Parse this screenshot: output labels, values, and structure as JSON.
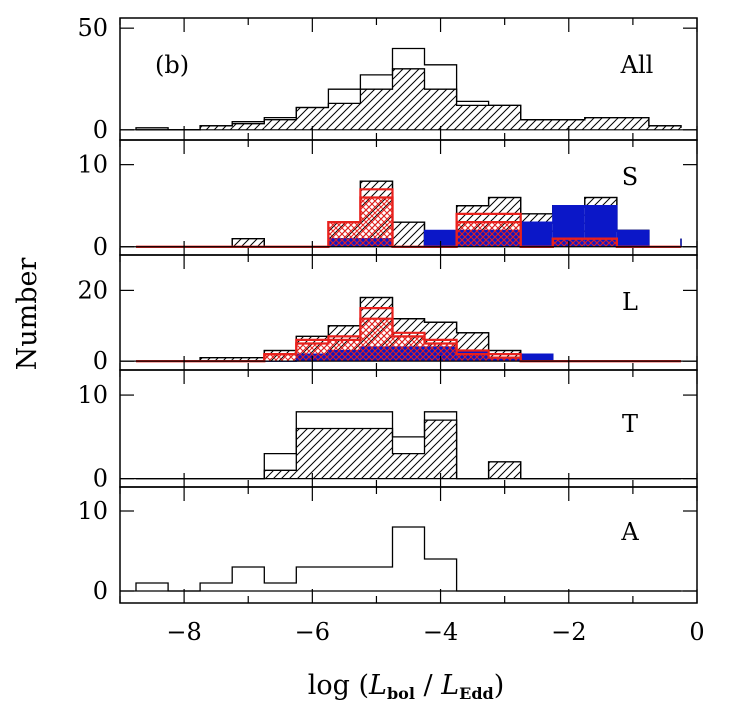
{
  "chart_data": {
    "type": "bar",
    "figure_label": "(b)",
    "xlabel_parts": {
      "prefix": "log",
      "num_main": "L",
      "num_sub": "bol",
      "slash": "/",
      "den_main": "L",
      "den_sub": "Edd"
    },
    "ylabel": "Number",
    "x_range": [
      -9,
      0
    ],
    "x_ticks": [
      -8,
      -6,
      -4,
      -2,
      0
    ],
    "bin_edges": [
      -8.75,
      -8.25,
      -7.75,
      -7.25,
      -6.75,
      -6.25,
      -5.75,
      -5.25,
      -4.75,
      -4.25,
      -3.75,
      -3.25,
      -2.75,
      -2.25,
      -1.75,
      -1.25,
      -0.75,
      -0.25
    ],
    "colors": {
      "red": "#e8201c",
      "blue": "#0b17c8",
      "hatch": "#000000"
    },
    "panels": [
      {
        "label": "All",
        "ylim": [
          -5,
          55
        ],
        "yticks": [
          0,
          50
        ],
        "series": [
          {
            "style": "hatch",
            "values": [
              0,
              0,
              2,
              3,
              5,
              11,
              13,
              20,
              30,
              20,
              12,
              12,
              5,
              5,
              6,
              6,
              2,
              1
            ]
          },
          {
            "style": "outline",
            "values": [
              1,
              0,
              2,
              4,
              6,
              11,
              20,
              27,
              40,
              32,
              14,
              12,
              5,
              5,
              6,
              6,
              2,
              1
            ]
          }
        ]
      },
      {
        "label": "S",
        "ylim": [
          -1,
          13
        ],
        "yticks": [
          0,
          10
        ],
        "series": [
          {
            "style": "hatch",
            "values": [
              0,
              0,
              0,
              1,
              0,
              0,
              3,
              8,
              3,
              0,
              5,
              6,
              4,
              5,
              6,
              2,
              0,
              1
            ]
          },
          {
            "style": "outline",
            "values": [
              0,
              0,
              0,
              1,
              0,
              0,
              3,
              8,
              3,
              0,
              5,
              6,
              4,
              5,
              6,
              2,
              0,
              1
            ]
          },
          {
            "style": "blue",
            "values": [
              0,
              0,
              0,
              0,
              0,
              0,
              1,
              1,
              0,
              2,
              2,
              2,
              3,
              5,
              5,
              2,
              0,
              1
            ]
          },
          {
            "style": "red-cross",
            "values": [
              0,
              0,
              0,
              0,
              0,
              0,
              3,
              6,
              0,
              0,
              3,
              3,
              0,
              1,
              1,
              0,
              0,
              0
            ]
          },
          {
            "style": "red-line",
            "values": [
              0,
              0,
              0,
              0,
              0,
              0,
              3,
              7,
              0,
              0,
              4,
              4,
              0,
              1,
              1,
              0,
              0,
              0
            ]
          }
        ]
      },
      {
        "label": "L",
        "ylim": [
          -2.5,
          30
        ],
        "yticks": [
          0,
          20
        ],
        "series": [
          {
            "style": "hatch",
            "values": [
              0,
              0,
              1,
              1,
              3,
              7,
              10,
              18,
              12,
              11,
              8,
              3,
              2,
              0,
              0,
              0,
              0,
              0
            ]
          },
          {
            "style": "outline",
            "values": [
              0,
              0,
              1,
              1,
              3,
              7,
              10,
              18,
              12,
              11,
              8,
              3,
              2,
              0,
              0,
              0,
              0,
              0
            ]
          },
          {
            "style": "blue",
            "values": [
              0,
              0,
              0,
              0,
              0,
              2,
              3,
              4,
              4,
              4,
              3,
              1,
              2,
              0,
              0,
              0,
              0,
              0
            ]
          },
          {
            "style": "red-cross",
            "values": [
              0,
              0,
              0,
              0,
              2,
              5,
              6,
              12,
              7,
              5,
              2,
              1,
              0,
              0,
              0,
              0,
              0,
              0
            ]
          },
          {
            "style": "red-line",
            "values": [
              0,
              0,
              0,
              0,
              2,
              6,
              7,
              15,
              8,
              6,
              3,
              2,
              0,
              0,
              0,
              0,
              0,
              0
            ]
          }
        ]
      },
      {
        "label": "T",
        "ylim": [
          -1,
          13
        ],
        "yticks": [
          0,
          10
        ],
        "series": [
          {
            "style": "hatch",
            "values": [
              0,
              0,
              0,
              0,
              1,
              6,
              6,
              6,
              3,
              7,
              0,
              2,
              0,
              0,
              0,
              0,
              0,
              0
            ]
          },
          {
            "style": "outline",
            "values": [
              0,
              0,
              0,
              0,
              3,
              8,
              8,
              8,
              5,
              8,
              0,
              2,
              0,
              0,
              0,
              0,
              0,
              0
            ]
          }
        ]
      },
      {
        "label": "A",
        "ylim": [
          -1.5,
          13
        ],
        "yticks": [
          0,
          10
        ],
        "series": [
          {
            "style": "outline",
            "values": [
              1,
              0,
              1,
              3,
              1,
              3,
              3,
              3,
              8,
              4,
              0,
              0,
              0,
              0,
              0,
              0,
              0,
              0
            ]
          }
        ]
      }
    ]
  }
}
